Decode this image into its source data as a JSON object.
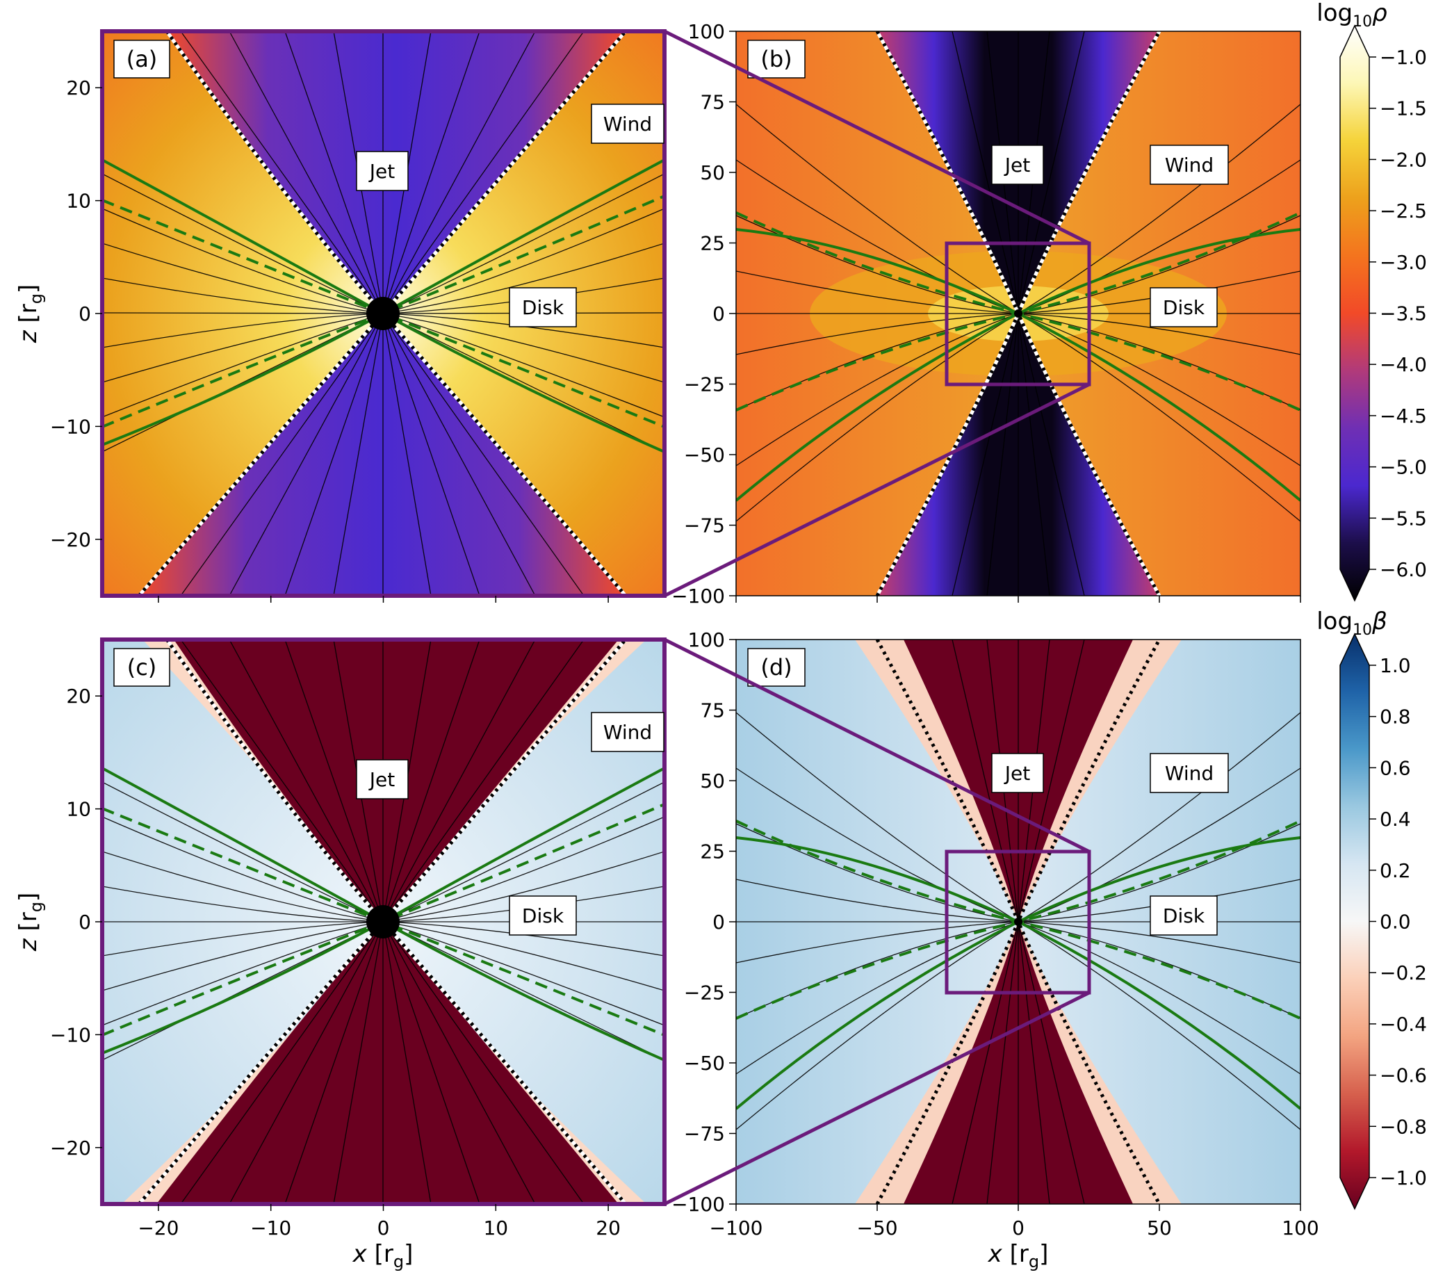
{
  "figure": {
    "x_axis_label": "x",
    "z_axis_label": "z",
    "axis_unit": "[r",
    "axis_unit_sub": "g",
    "axis_unit_close": "]"
  },
  "colorbars": {
    "rho": {
      "label_prefix": "log",
      "label_sub": "10",
      "label_symbol": "ρ",
      "ticks": [
        "−1.0",
        "−1.5",
        "−2.0",
        "−2.5",
        "−3.0",
        "−3.5",
        "−4.0",
        "−4.5",
        "−5.0",
        "−5.5",
        "−6.0"
      ],
      "colors": [
        "#ffffff",
        "#fdf7b6",
        "#f5d33a",
        "#eda11c",
        "#f4741e",
        "#f24a28",
        "#b13a7a",
        "#6f2fb4",
        "#4b28cf",
        "#1c0e4a",
        "#000000"
      ]
    },
    "beta": {
      "label_prefix": "log",
      "label_sub": "10",
      "label_symbol": "β",
      "ticks": [
        "1.0",
        "0.8",
        "0.6",
        "0.4",
        "0.2",
        "0.0",
        "−0.2",
        "−0.4",
        "−0.6",
        "−0.8",
        "−1.0"
      ],
      "colors": [
        "#08306b",
        "#1f63a8",
        "#4a98c9",
        "#9ac8e0",
        "#d6e6f2",
        "#f7f7f7",
        "#fbd0b9",
        "#f3a481",
        "#d6604d",
        "#b2182b",
        "#67001f"
      ]
    }
  },
  "panels": [
    {
      "label": "(a)",
      "regions": [
        "Jet",
        "Wind",
        "Disk"
      ]
    },
    {
      "label": "(b)",
      "regions": [
        "Jet",
        "Wind",
        "Disk"
      ]
    },
    {
      "label": "(c)",
      "regions": [
        "Jet",
        "Wind",
        "Disk"
      ]
    },
    {
      "label": "(d)",
      "regions": [
        "Jet",
        "Wind",
        "Disk"
      ]
    }
  ],
  "chart_data": [
    {
      "type": "heatmap",
      "panel": "a",
      "quantity": "log10 rho",
      "xlim": [
        -25,
        25
      ],
      "ylim": [
        -25,
        25
      ],
      "xticks": [
        -20,
        -10,
        0,
        10,
        20
      ],
      "yticks": [
        -20,
        -10,
        0,
        10,
        20
      ],
      "annotations": [
        {
          "text": "Jet",
          "x": 0,
          "y": 12.5
        },
        {
          "text": "Wind",
          "x": 19.5,
          "y": 16.5
        },
        {
          "text": "Disk",
          "x": 14,
          "y": 0.5
        }
      ]
    },
    {
      "type": "heatmap",
      "panel": "b",
      "quantity": "log10 rho",
      "xlim": [
        -100,
        100
      ],
      "ylim": [
        -100,
        100
      ],
      "xticks": [
        -100,
        -50,
        0,
        50,
        100
      ],
      "yticks": [
        -100,
        -75,
        -50,
        -25,
        0,
        25,
        50,
        75,
        100
      ],
      "inset_box": {
        "xlim": [
          -25,
          25
        ],
        "ylim": [
          -25,
          25
        ]
      },
      "annotations": [
        {
          "text": "Jet",
          "x": 0,
          "y": 52
        },
        {
          "text": "Wind",
          "x": 59,
          "y": 52
        },
        {
          "text": "Disk",
          "x": 58,
          "y": 2
        }
      ]
    },
    {
      "type": "heatmap",
      "panel": "c",
      "quantity": "log10 beta",
      "xlim": [
        -25,
        25
      ],
      "ylim": [
        -25,
        25
      ],
      "xticks": [
        -20,
        -10,
        0,
        10,
        20
      ],
      "yticks": [
        -20,
        -10,
        0,
        10,
        20
      ],
      "annotations": [
        {
          "text": "Jet",
          "x": 0,
          "y": 12.5
        },
        {
          "text": "Wind",
          "x": 19.5,
          "y": 16.5
        },
        {
          "text": "Disk",
          "x": 14,
          "y": 0.5
        }
      ]
    },
    {
      "type": "heatmap",
      "panel": "d",
      "quantity": "log10 beta",
      "xlim": [
        -100,
        100
      ],
      "ylim": [
        -100,
        100
      ],
      "xticks": [
        -100,
        -50,
        0,
        50,
        100
      ],
      "yticks": [
        -100,
        -75,
        -50,
        -25,
        0,
        25,
        50,
        75,
        100
      ],
      "inset_box": {
        "xlim": [
          -25,
          25
        ],
        "ylim": [
          -25,
          25
        ]
      },
      "annotations": [
        {
          "text": "Jet",
          "x": 0,
          "y": 52
        },
        {
          "text": "Wind",
          "x": 59,
          "y": 52
        },
        {
          "text": "Disk",
          "x": 58,
          "y": 2
        }
      ]
    }
  ]
}
